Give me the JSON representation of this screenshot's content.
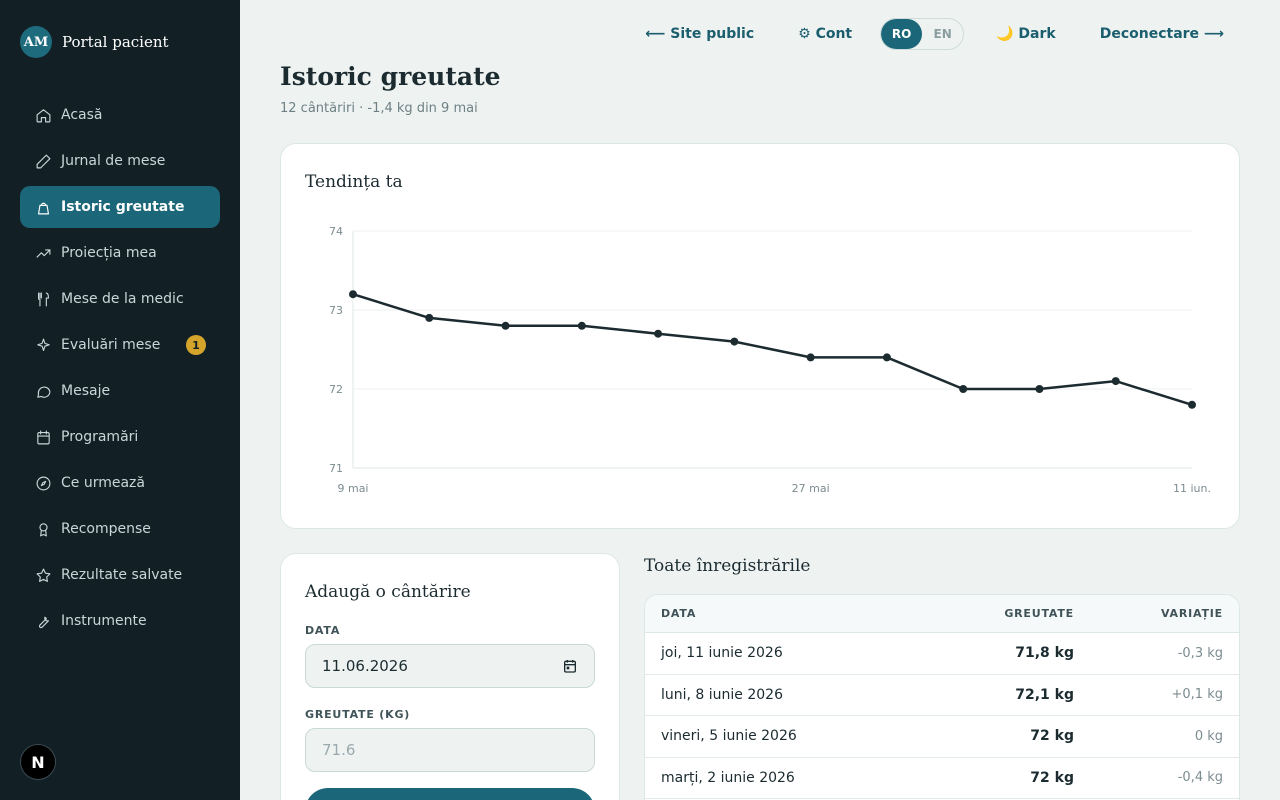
{
  "brand": {
    "initials": "AM",
    "name": "Portal pacient"
  },
  "sidebar": {
    "items": [
      {
        "label": "Acasă",
        "icon": "home-icon"
      },
      {
        "label": "Jurnal de mese",
        "icon": "pencil-icon"
      },
      {
        "label": "Istoric greutate",
        "icon": "scale-icon",
        "active": true
      },
      {
        "label": "Proiecția mea",
        "icon": "trending-up-icon"
      },
      {
        "label": "Mese de la medic",
        "icon": "utensils-icon"
      },
      {
        "label": "Evaluări mese",
        "icon": "sparkles-icon",
        "badge": "1"
      },
      {
        "label": "Mesaje",
        "icon": "message-icon"
      },
      {
        "label": "Programări",
        "icon": "calendar-icon"
      },
      {
        "label": "Ce urmează",
        "icon": "compass-icon"
      },
      {
        "label": "Recompense",
        "icon": "award-icon"
      },
      {
        "label": "Rezultate salvate",
        "icon": "star-icon"
      },
      {
        "label": "Instrumente",
        "icon": "wrench-icon"
      }
    ],
    "framework_badge": "N"
  },
  "topbar": {
    "site_public": "⟵ Site public",
    "account": "⚙ Cont",
    "lang_ro": "RO",
    "lang_en": "EN",
    "dark": "🌙 Dark",
    "logout": "Deconectare ⟶"
  },
  "page": {
    "title": "Istoric greutate",
    "subtitle": "12 cântăriri · -1,4 kg din 9 mai"
  },
  "chart_card": {
    "title": "Tendința ta"
  },
  "chart_data": {
    "type": "line",
    "title": "Tendința ta",
    "x": [
      "9 mai",
      "12 mai",
      "15 mai",
      "18 mai",
      "21 mai",
      "24 mai",
      "27 mai",
      "30 mai",
      "2 iun.",
      "5 iun.",
      "8 iun.",
      "11 iun."
    ],
    "x_tick_labels": [
      "9 mai",
      "27 mai",
      "11 iun."
    ],
    "x_tick_indices": [
      0,
      6,
      11
    ],
    "series": [
      {
        "values": [
          73.2,
          72.9,
          72.8,
          72.8,
          72.7,
          72.6,
          72.4,
          72.4,
          72.0,
          72.0,
          72.1,
          71.8
        ]
      }
    ],
    "ylim": [
      71,
      74
    ],
    "y_ticks": [
      "71",
      "72",
      "73",
      "74"
    ],
    "xlabel": "",
    "ylabel": "",
    "grid": true,
    "line_color": "#1c2b30"
  },
  "add_form": {
    "title": "Adaugă o cântărire",
    "date_label": "DATA",
    "date_value": "11.06.2026",
    "weight_label": "GREUTATE (KG)",
    "weight_placeholder": "71.6"
  },
  "records": {
    "title": "Toate înregistrările",
    "columns": [
      "DATA",
      "GREUTATE",
      "VARIAȚIE"
    ],
    "rows": [
      {
        "date": "joi, 11 iunie 2026",
        "weight": "71,8 kg",
        "change": "-0,3 kg"
      },
      {
        "date": "luni, 8 iunie 2026",
        "weight": "72,1 kg",
        "change": "+0,1 kg"
      },
      {
        "date": "vineri, 5 iunie 2026",
        "weight": "72 kg",
        "change": "0 kg"
      },
      {
        "date": "marți, 2 iunie 2026",
        "weight": "72 kg",
        "change": "-0,4 kg"
      }
    ]
  },
  "colors": {
    "sidebar_bg": "#122026",
    "accent": "#1b6678",
    "badge": "#d4a52a",
    "page_bg": "#eef3f2"
  }
}
